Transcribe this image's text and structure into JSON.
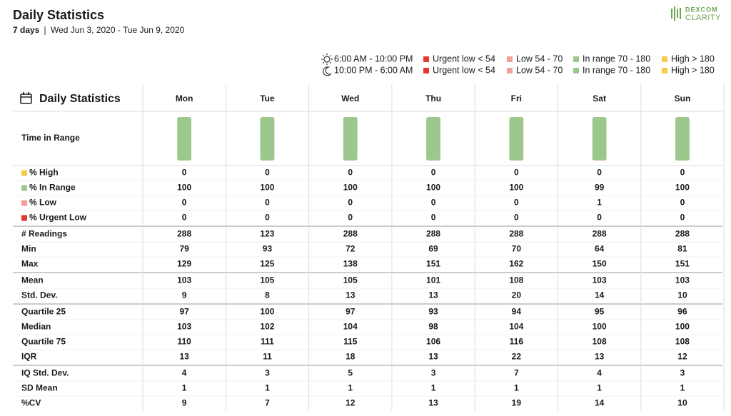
{
  "header": {
    "title": "Daily Statistics",
    "period": "7 days",
    "dates": "Wed Jun 3, 2020 - Tue Jun 9, 2020",
    "logo": {
      "brand": "DEXCOM",
      "product": "CLARITY"
    }
  },
  "legend": {
    "periods": [
      "6:00 AM - 10:00 PM",
      "10:00 PM - 6:00 AM"
    ],
    "items": [
      {
        "label": "Urgent low < 54",
        "color": "#e2392e"
      },
      {
        "label": "Low 54 - 70",
        "color": "#f4a09a"
      },
      {
        "label": "In range 70 - 180",
        "color": "#9dc88d"
      },
      {
        "label": "High > 180",
        "color": "#f7cb4d"
      }
    ]
  },
  "table": {
    "title": "Daily Statistics",
    "days": [
      "Mon",
      "Tue",
      "Wed",
      "Thu",
      "Fri",
      "Sat",
      "Sun"
    ],
    "time_in_range_label": "Time in Range",
    "groups": [
      {
        "rows": [
          {
            "label": "% High",
            "color": "#f7cb4d",
            "values": [
              0,
              0,
              0,
              0,
              0,
              0,
              0
            ]
          },
          {
            "label": "% In Range",
            "color": "#9dc88d",
            "values": [
              100,
              100,
              100,
              100,
              100,
              99,
              100
            ]
          },
          {
            "label": "% Low",
            "color": "#f4a09a",
            "values": [
              0,
              0,
              0,
              0,
              0,
              1,
              0
            ]
          },
          {
            "label": "% Urgent Low",
            "color": "#e2392e",
            "values": [
              0,
              0,
              0,
              0,
              0,
              0,
              0
            ]
          }
        ]
      },
      {
        "rows": [
          {
            "label": "# Readings",
            "values": [
              288,
              123,
              288,
              288,
              288,
              288,
              288
            ]
          },
          {
            "label": "Min",
            "values": [
              79,
              93,
              72,
              69,
              70,
              64,
              81
            ]
          },
          {
            "label": "Max",
            "values": [
              129,
              125,
              138,
              151,
              162,
              150,
              151
            ]
          }
        ]
      },
      {
        "rows": [
          {
            "label": "Mean",
            "values": [
              103,
              105,
              105,
              101,
              108,
              103,
              103
            ]
          },
          {
            "label": "Std. Dev.",
            "values": [
              9,
              8,
              13,
              13,
              20,
              14,
              10
            ]
          }
        ]
      },
      {
        "rows": [
          {
            "label": "Quartile 25",
            "values": [
              97,
              100,
              97,
              93,
              94,
              95,
              96
            ]
          },
          {
            "label": "Median",
            "values": [
              103,
              102,
              104,
              98,
              104,
              100,
              100
            ]
          },
          {
            "label": "Quartile 75",
            "values": [
              110,
              111,
              115,
              106,
              116,
              108,
              108
            ]
          },
          {
            "label": "IQR",
            "values": [
              13,
              11,
              18,
              13,
              22,
              13,
              12
            ]
          }
        ]
      },
      {
        "rows": [
          {
            "label": "IQ Std. Dev.",
            "values": [
              4,
              3,
              5,
              3,
              7,
              4,
              3
            ]
          },
          {
            "label": "SD Mean",
            "values": [
              1,
              1,
              1,
              1,
              1,
              1,
              1
            ]
          },
          {
            "label": "%CV",
            "values": [
              9,
              7,
              12,
              13,
              19,
              14,
              10
            ]
          }
        ]
      }
    ]
  }
}
